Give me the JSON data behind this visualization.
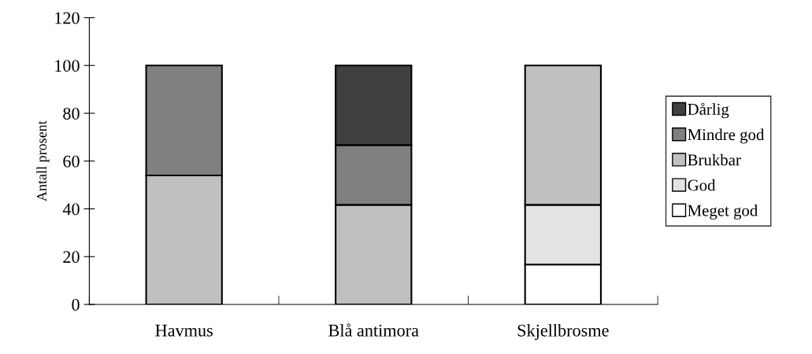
{
  "chart_data": {
    "type": "bar",
    "stacked": true,
    "ylabel": "Antall prosent",
    "categories": [
      "Havmus",
      "Blå antimora",
      "Skjellbrosme"
    ],
    "series": [
      {
        "name": "Meget god",
        "color": "#ffffff",
        "values": [
          0,
          0,
          16.7
        ]
      },
      {
        "name": "God",
        "color": "#e3e3e3",
        "values": [
          0,
          0,
          25
        ]
      },
      {
        "name": "Brukbar",
        "color": "#c0c0c0",
        "values": [
          54,
          41.7,
          58.3
        ]
      },
      {
        "name": "Mindre god",
        "color": "#808080",
        "values": [
          46,
          25,
          0
        ]
      },
      {
        "name": "Dårlig",
        "color": "#404040",
        "values": [
          0,
          33.3,
          0
        ]
      }
    ],
    "ylim": [
      0,
      120
    ],
    "yticks": [
      0,
      20,
      40,
      60,
      80,
      100,
      120
    ],
    "grid": false,
    "legend": "right"
  }
}
